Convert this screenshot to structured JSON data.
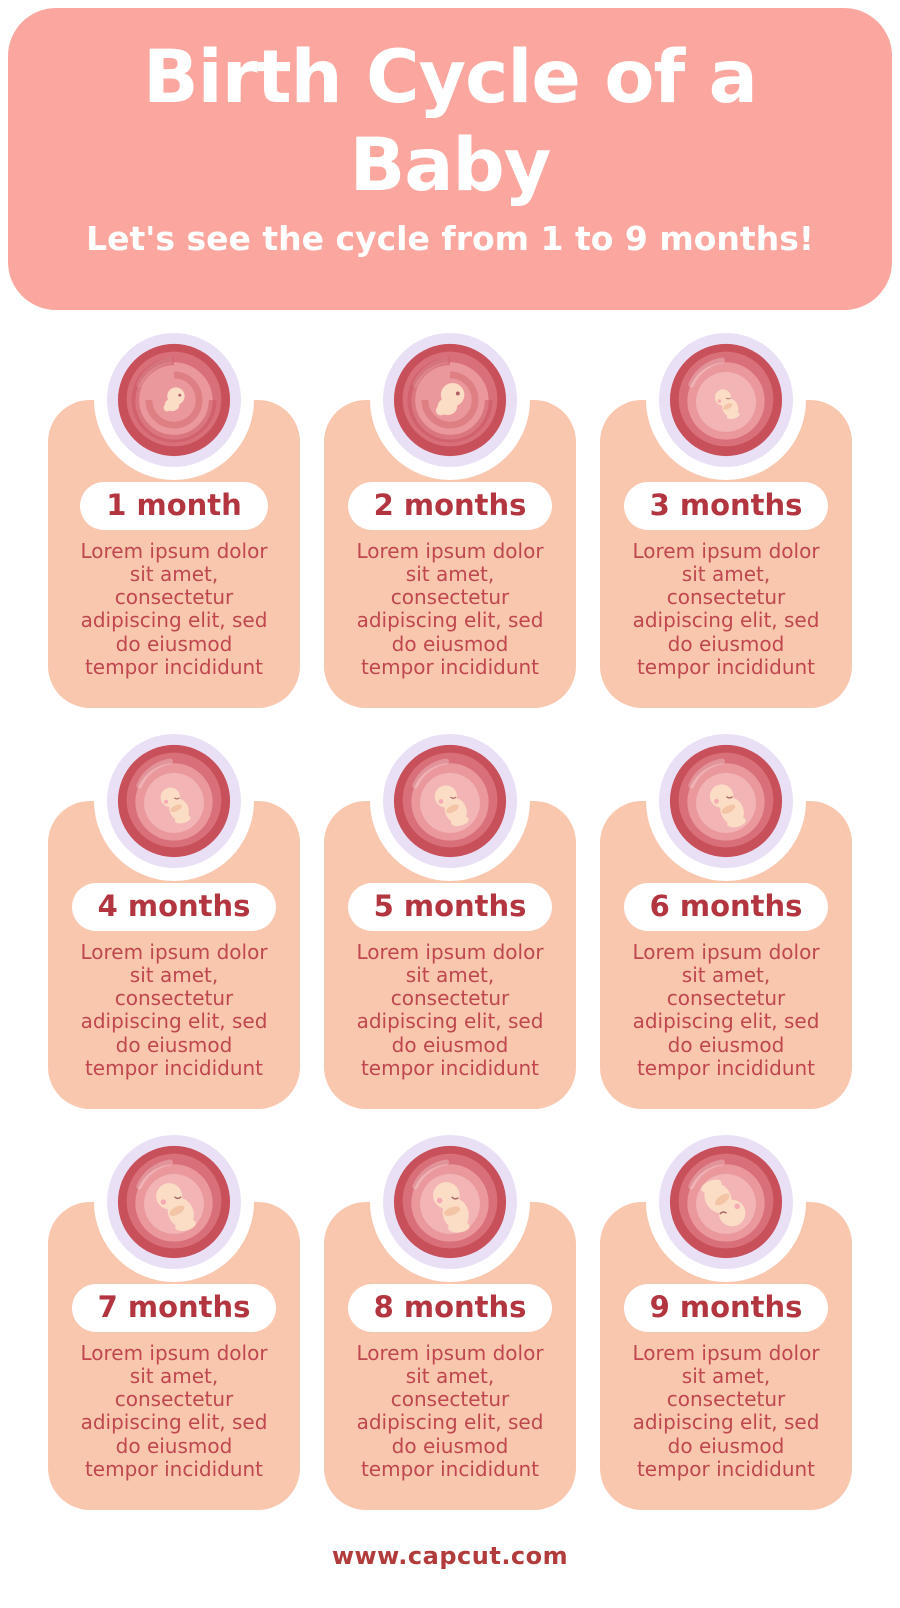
{
  "header": {
    "title": "Birth Cycle of a\nBaby",
    "subtitle": "Let's see the cycle from 1 to 9 months!"
  },
  "cards": [
    {
      "month_label": "1 month",
      "illustration": "embryo-in-womb-month-1",
      "description": "Lorem ipsum dolor\nsit amet,\nconsectetur\nadipiscing elit, sed\ndo eiusmod\ntempor incididunt"
    },
    {
      "month_label": "2 months",
      "illustration": "embryo-in-womb-month-2",
      "description": "Lorem ipsum dolor\nsit amet,\nconsectetur\nadipiscing elit, sed\ndo eiusmod\ntempor incididunt"
    },
    {
      "month_label": "3 months",
      "illustration": "fetus-in-womb-month-3",
      "description": "Lorem ipsum dolor\nsit amet,\nconsectetur\nadipiscing elit, sed\ndo eiusmod\ntempor incididunt"
    },
    {
      "month_label": "4 months",
      "illustration": "fetus-in-womb-month-4",
      "description": "Lorem ipsum dolor\nsit amet,\nconsectetur\nadipiscing elit, sed\ndo eiusmod\ntempor incididunt"
    },
    {
      "month_label": "5 months",
      "illustration": "fetus-in-womb-month-5",
      "description": "Lorem ipsum dolor\nsit amet,\nconsectetur\nadipiscing elit, sed\ndo eiusmod\ntempor incididunt"
    },
    {
      "month_label": "6 months",
      "illustration": "fetus-in-womb-month-6",
      "description": "Lorem ipsum dolor\nsit amet,\nconsectetur\nadipiscing elit, sed\ndo eiusmod\ntempor incididunt"
    },
    {
      "month_label": "7 months",
      "illustration": "fetus-in-womb-month-7",
      "description": "Lorem ipsum dolor\nsit amet,\nconsectetur\nadipiscing elit, sed\ndo eiusmod\ntempor incididunt"
    },
    {
      "month_label": "8 months",
      "illustration": "fetus-in-womb-month-8",
      "description": "Lorem ipsum dolor\nsit amet,\nconsectetur\nadipiscing elit, sed\ndo eiusmod\ntempor incididunt"
    },
    {
      "month_label": "9 months",
      "illustration": "fetus-in-womb-month-9-head-down",
      "description": "Lorem ipsum dolor\nsit amet,\nconsectetur\nadipiscing elit, sed\ndo eiusmod\ntempor incididunt"
    }
  ],
  "footer": {
    "url": "www.capcut.com"
  },
  "colors": {
    "header_pink": "#fba7a0",
    "card_peach": "#f8c7ae",
    "title_white": "#ffffff",
    "month_label_red": "#b2353f",
    "body_text_red": "#c0474f",
    "footer_red": "#b23b3b",
    "bubble_lavender": "#e9e0f6",
    "womb_dark": "#c8505a",
    "womb_mid": "#d96f78",
    "womb_light": "#ea989c",
    "womb_lighter": "#f2b4b5",
    "baby_skin": "#fbdcc4",
    "baby_shade": "#f3c4a6",
    "baby_blush": "#f5aab4"
  }
}
